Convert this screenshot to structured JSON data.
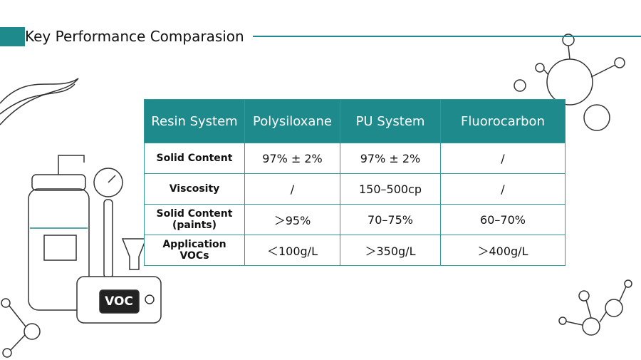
{
  "header": {
    "title": "Key Performance Comparasion"
  },
  "table": {
    "columns": [
      "Resin System",
      "Polysiloxane",
      "PU System",
      "Fluorocarbon"
    ],
    "rows": [
      [
        "Solid Content",
        "97% ± 2%",
        "97% ± 2%",
        "/"
      ],
      [
        "Viscosity",
        "/",
        "150–500cp",
        "/"
      ],
      [
        "Solid Content (paints)",
        "＞95%",
        "70–75%",
        "60–70%"
      ],
      [
        "Application VOCs",
        "＜100g/L",
        "＞350g/L",
        "＞400g/L"
      ]
    ]
  },
  "illustration": {
    "device_label": "VOC"
  }
}
